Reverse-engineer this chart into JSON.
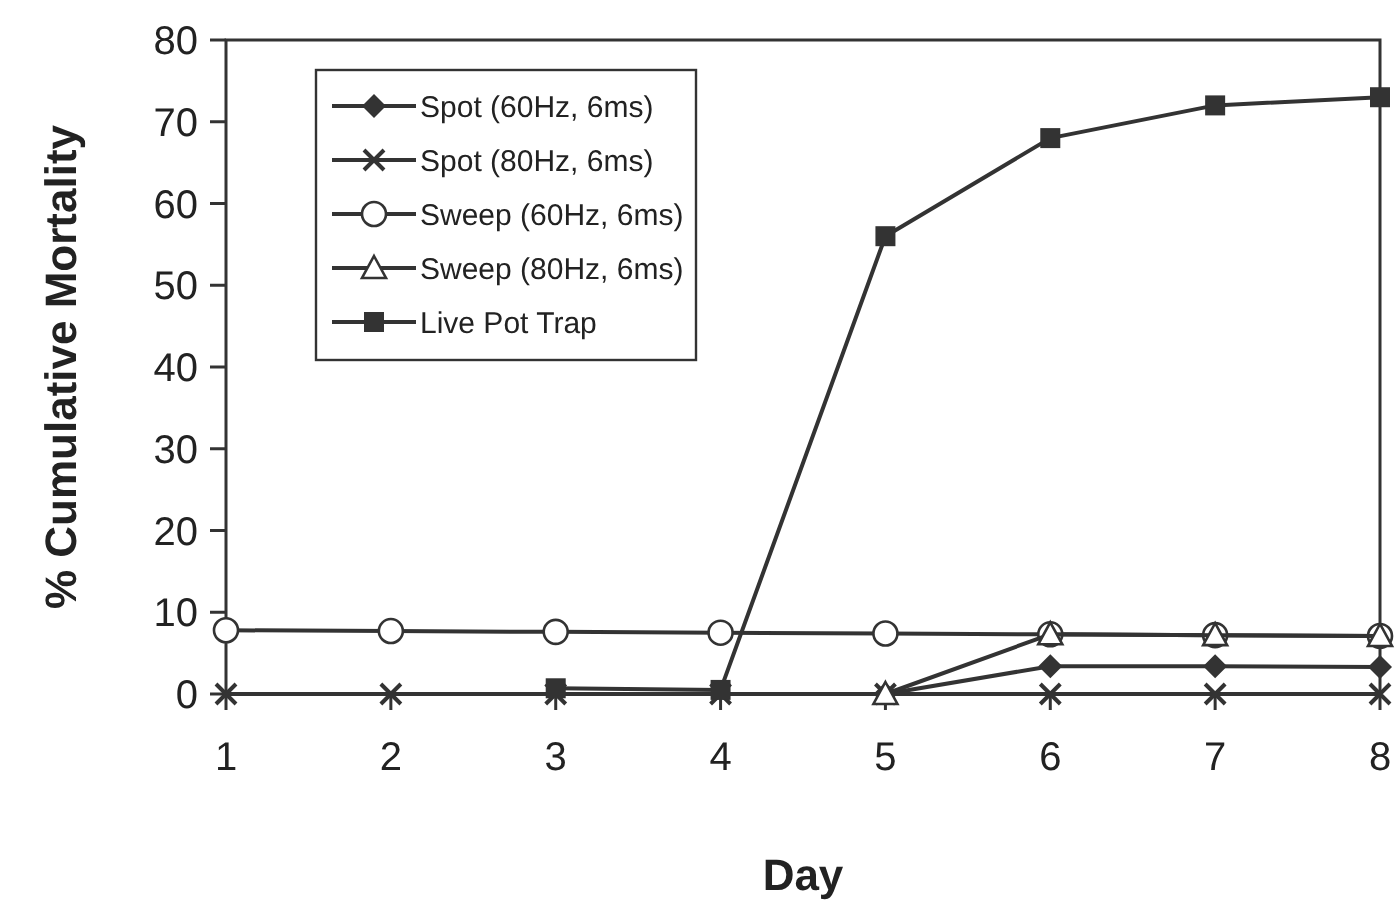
{
  "chart_data": {
    "type": "line",
    "xlabel": "Day",
    "ylabel": "% Cumulative Mortality",
    "x": [
      1,
      2,
      3,
      4,
      5,
      6,
      7,
      8
    ],
    "xlim": [
      1,
      8
    ],
    "xticks": [
      1,
      2,
      3,
      4,
      5,
      6,
      7,
      8
    ],
    "ylim": [
      0,
      80
    ],
    "yticks": [
      0,
      10,
      20,
      30,
      40,
      50,
      60,
      70,
      80
    ],
    "grid": false,
    "legend": "top left",
    "series": [
      {
        "name": "Spot (60Hz, 6ms)",
        "color": "#333333",
        "marker": "diamond",
        "values": [
          null,
          null,
          null,
          null,
          0,
          3.4,
          3.4,
          3.3
        ]
      },
      {
        "name": "Spot (80Hz, 6ms)",
        "color": "#333333",
        "marker": "cross",
        "values": [
          0,
          0,
          0,
          0,
          0,
          0,
          0,
          0
        ]
      },
      {
        "name": "Sweep (60Hz, 6ms)",
        "color": "#333333",
        "marker": "circle",
        "values": [
          7.8,
          7.7,
          7.6,
          7.5,
          7.4,
          7.3,
          7.2,
          7.1
        ]
      },
      {
        "name": "Sweep (80Hz, 6ms)",
        "color": "#333333",
        "marker": "triangle",
        "values": [
          null,
          null,
          null,
          null,
          0,
          7.3,
          7.2,
          7.1
        ]
      },
      {
        "name": "Live Pot Trap",
        "color": "#333333",
        "marker": "square",
        "values": [
          null,
          null,
          0.7,
          0.5,
          56,
          68,
          72,
          73
        ]
      }
    ]
  }
}
